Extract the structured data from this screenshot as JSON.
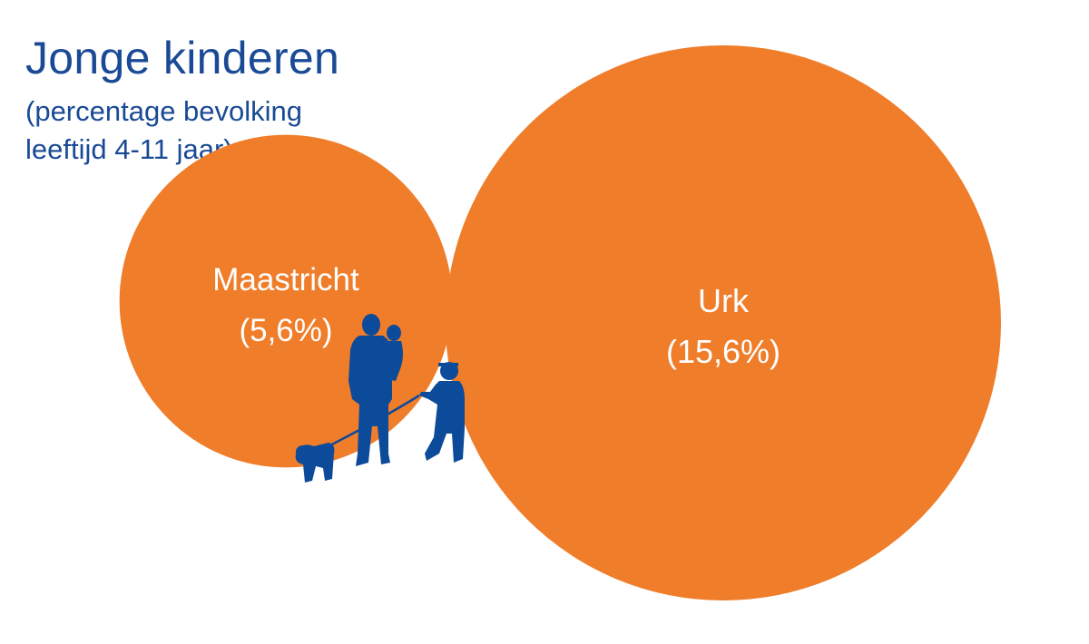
{
  "title": "Jonge kinderen",
  "subtitle_lines": [
    "(percentage bevolking",
    "leeftijd 4-11 jaar)"
  ],
  "colors": {
    "bubble": "#ef7d2a",
    "text": "#1a4a96",
    "silhouette": "#0c4a9a"
  },
  "illustration": "family-walking-dog-silhouette",
  "chart_data": {
    "type": "bubble",
    "title": "Jonge kinderen",
    "subtitle": "(percentage bevolking leeftijd 4-11 jaar)",
    "series": [
      {
        "name": "Maastricht",
        "value": 5.6,
        "value_label": "(5,6%)"
      },
      {
        "name": "Urk",
        "value": 15.6,
        "value_label": "(15,6%)"
      }
    ]
  }
}
